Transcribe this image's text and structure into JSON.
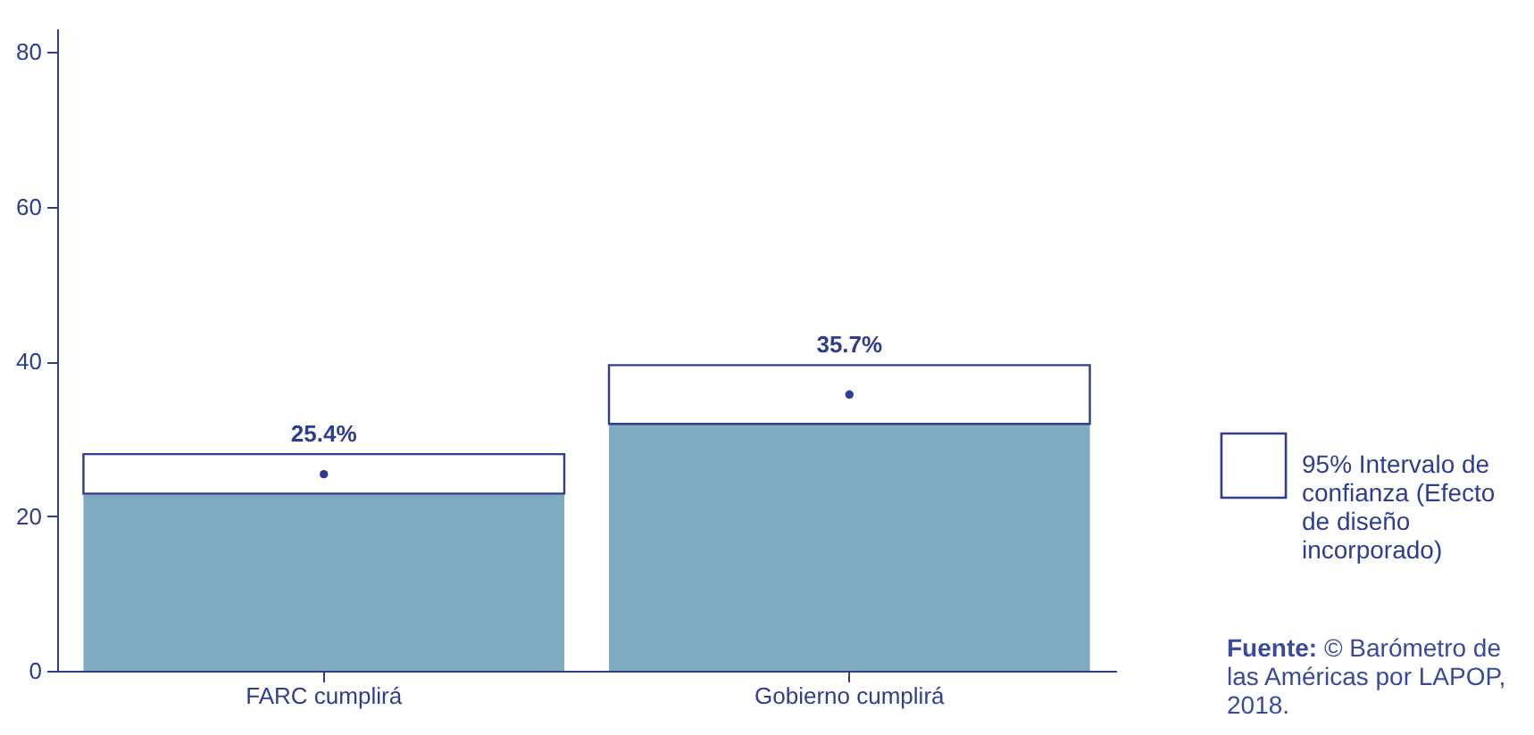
{
  "chart_data": {
    "type": "bar",
    "stacked": true,
    "categories": [
      "FARC cumplirá",
      "Gobierno cumplirá"
    ],
    "series": [
      {
        "type": "bar",
        "color": "#7fa9be",
        "values": [
          22.9,
          31.9
        ]
      },
      {
        "type": "bar",
        "name": "95% Intervalo de confianza (Efecto de diseño incorporado)",
        "color": "#ffffff",
        "values": [
          5.1,
          7.6
        ]
      },
      {
        "type": "scatter",
        "color": "#2e3d8f",
        "x": [
          "FARC cumplirá",
          "Gobierno cumplirá"
        ],
        "values": [
          25.4,
          35.7
        ],
        "value_labels": [
          "25.4%",
          "35.7%"
        ]
      }
    ],
    "ylim": [
      0,
      83
    ],
    "yticks": [
      0,
      20,
      40,
      60,
      80
    ],
    "grid": false,
    "legend": "right",
    "annotations": [
      "Fuente: © Barómetro de las Américas por LAPOP, 2018."
    ]
  }
}
